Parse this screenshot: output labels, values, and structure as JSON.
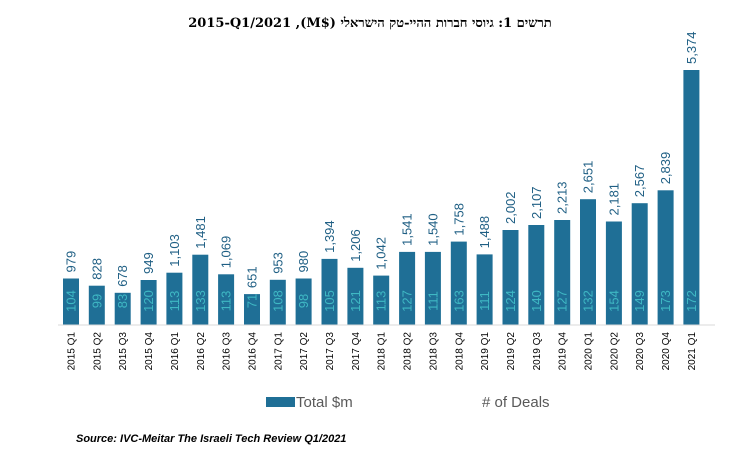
{
  "chart_data": {
    "type": "bar",
    "title": "תרשים 1: גיוסי חברות ההיי-טק הישראלי ($M), 2015-Q1/2021",
    "categories": [
      "2015 Q1",
      "2015 Q2",
      "2015 Q3",
      "2015 Q4",
      "2016 Q1",
      "2016 Q2",
      "2016 Q3",
      "2016 Q4",
      "2017 Q1",
      "2017 Q2",
      "2017 Q3",
      "2017 Q4",
      "2018 Q1",
      "2018 Q2",
      "2018 Q3",
      "2018 Q4",
      "2019 Q1",
      "2019 Q2",
      "2019 Q3",
      "2019 Q4",
      "2020 Q1",
      "2020 Q2",
      "2020 Q3",
      "2020 Q4",
      "2021 Q1"
    ],
    "series": [
      {
        "name": "Total $m",
        "color": "#1f6f96",
        "values": [
          979,
          828,
          678,
          949,
          1103,
          1481,
          1069,
          651,
          953,
          980,
          1394,
          1206,
          1042,
          1541,
          1540,
          1758,
          1488,
          2002,
          2107,
          2213,
          2651,
          2181,
          2567,
          2839,
          5374
        ],
        "labels": [
          "979",
          "828",
          "678",
          "949",
          "1,103",
          "1,481",
          "1,069",
          "651",
          "953",
          "980",
          "1,394",
          "1,206",
          "1,042",
          "1,541",
          "1,540",
          "1,758",
          "1,488",
          "2,002",
          "2,107",
          "2,213",
          "2,651",
          "2,181",
          "2,567",
          "2,839",
          "5,374"
        ]
      },
      {
        "name": "# of Deals",
        "color": "#3fb8c4",
        "values": [
          104,
          99,
          83,
          120,
          113,
          133,
          113,
          71,
          108,
          98,
          105,
          121,
          113,
          127,
          111,
          163,
          111,
          124,
          140,
          127,
          132,
          154,
          149,
          173,
          172
        ]
      }
    ],
    "ylim": [
      0,
      5500
    ],
    "legend_position": "bottom",
    "grid": false
  },
  "source": "Source: IVC-Meitar The Israeli Tech Review Q1/2021"
}
